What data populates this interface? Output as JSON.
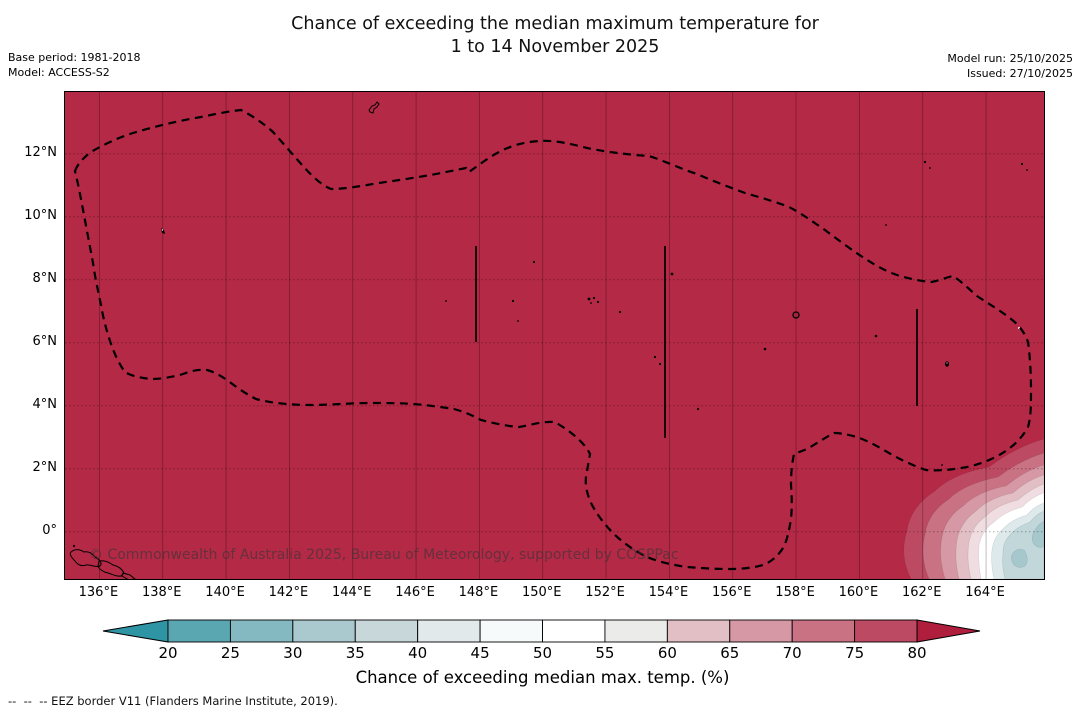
{
  "header": {
    "title_line1": "Chance of exceeding the median maximum temperature for",
    "title_line2": "1 to 14 November 2025",
    "base_period": "Base period: 1981-2018",
    "model": "Model: ACCESS-S2",
    "model_run": "Model run: 25/10/2025",
    "issued": "Issued: 27/10/2025"
  },
  "map": {
    "watermark": "© Commonwealth of Australia 2025, Bureau of Meteorology, supported by COSPPac",
    "fill_color": "#b42945",
    "eez_border_style": "black dashed",
    "gridline_color": "rgba(0,0,0,0.32)"
  },
  "axes": {
    "x_ticks": [
      "136°E",
      "138°E",
      "140°E",
      "142°E",
      "144°E",
      "146°E",
      "148°E",
      "150°E",
      "152°E",
      "154°E",
      "156°E",
      "158°E",
      "160°E",
      "162°E",
      "164°E"
    ],
    "y_ticks": [
      "12°N",
      "10°N",
      "8°N",
      "6°N",
      "4°N",
      "2°N",
      "0°"
    ]
  },
  "colorbar": {
    "ticks": [
      "20",
      "25",
      "30",
      "35",
      "40",
      "45",
      "50",
      "55",
      "60",
      "65",
      "70",
      "75",
      "80"
    ],
    "segment_colors": [
      "#5ba7b1",
      "#85b9c1",
      "#a9c9ce",
      "#c7d7da",
      "#e1e9ea",
      "#f7fafa",
      "#ffffff",
      "#ebebea",
      "#e2bfc5",
      "#d698a4",
      "#c97283",
      "#bd4a63"
    ],
    "left_arrow_color": "#2f94a3",
    "right_arrow_color": "#b01e3e",
    "label": "Chance of exceeding median max. temp. (%)"
  },
  "footer": {
    "eez_note": "--  --  -- EEZ border V11 (Flanders Marine Institute, 2019)."
  },
  "chart_data": {
    "type": "heatmap",
    "title": "Chance of exceeding the median maximum temperature for 1 to 14 November 2025",
    "x_ticks": [
      "136°E",
      "138°E",
      "140°E",
      "142°E",
      "144°E",
      "146°E",
      "148°E",
      "150°E",
      "152°E",
      "154°E",
      "156°E",
      "158°E",
      "160°E",
      "162°E",
      "164°E"
    ],
    "y_ticks": [
      "12°N",
      "10°N",
      "8°N",
      "6°N",
      "4°N",
      "2°N",
      "0°"
    ],
    "x_range_deg_east": [
      134.9,
      165.9
    ],
    "y_range_deg_north": [
      -1.5,
      14.0
    ],
    "colorbar_label": "Chance of exceeding median max. temp. (%)",
    "levels_percent": [
      20,
      25,
      30,
      35,
      40,
      45,
      50,
      55,
      60,
      65,
      70,
      75,
      80
    ],
    "palette": [
      "#2f94a3",
      "#5ba7b1",
      "#85b9c1",
      "#a9c9ce",
      "#c7d7da",
      "#e1e9ea",
      "#f7fafa",
      "#ffffff",
      "#ebebea",
      "#e2bfc5",
      "#d698a4",
      "#c97283",
      "#bd4a63",
      "#b01e3e"
    ],
    "field_summary": {
      "dominant_value": ">80% chance over almost the entire mapped region",
      "low_patch": {
        "lon_range_deg_east": [
          162,
          166
        ],
        "lat_range_deg_north": [
          -1.5,
          1.5
        ],
        "values": "concentric contours dropping to roughly 35-60%"
      }
    },
    "overlays": [
      "dashed EEZ border polygon",
      "island coastlines",
      "latitude-longitude gridlines"
    ],
    "grid": true,
    "legend_position": "horizontal colorbar below map"
  }
}
